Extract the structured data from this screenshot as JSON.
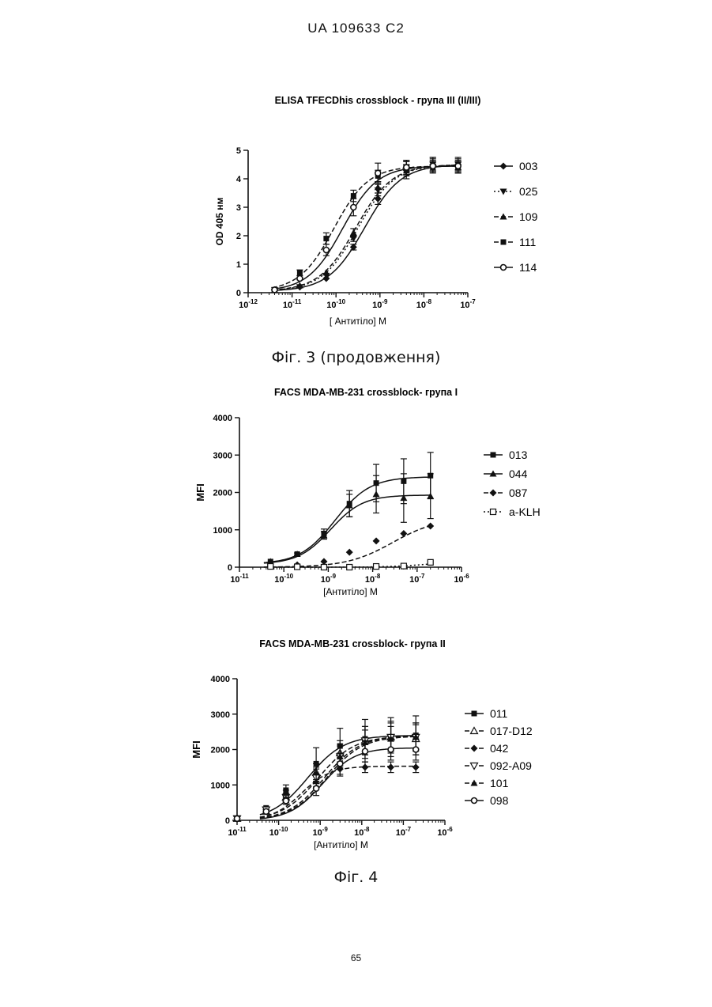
{
  "page": {
    "header": "UA   109633   C2",
    "page_number": "65",
    "figure3_caption": "Фіг. 3 (продовження)",
    "figure4_caption": "Фіг. 4"
  },
  "chart_data": [
    {
      "type": "scatter",
      "title": "ELISA TFECDhis crossblock -  група III (II/III)",
      "xlabel": "[ Антитіло] М",
      "ylabel": "OD 405 нм",
      "xscale": "log",
      "xlim": [
        1e-12,
        1e-07
      ],
      "ylim": [
        0,
        5
      ],
      "xticks": [
        "10-12",
        "10-11",
        "10-10",
        "10-9",
        "10-8",
        "10-7"
      ],
      "yticks": [
        "0",
        "1",
        "2",
        "3",
        "4",
        "5"
      ],
      "legend": "right",
      "x": [
        4e-12,
        1.5e-11,
        6e-11,
        2.5e-10,
        9e-10,
        4e-09,
        1.6e-08,
        6e-08
      ],
      "series": [
        {
          "name": "003",
          "marker": "diamond",
          "dash": "",
          "values": [
            0.1,
            0.2,
            0.5,
            1.6,
            3.3,
            4.3,
            4.5,
            4.5
          ],
          "fit": {
            "bottom": 0.05,
            "top": 4.5,
            "logec50": -9.35,
            "hill": 1.05
          },
          "err": [
            0,
            0,
            0,
            0.1,
            0.2,
            0.3,
            0.25,
            0.25
          ]
        },
        {
          "name": "025",
          "marker": "tri-down",
          "dash": "2,3",
          "values": [
            0.1,
            0.2,
            0.6,
            1.9,
            3.6,
            4.4,
            4.5,
            4.5
          ],
          "fit": {
            "bottom": 0.05,
            "top": 4.5,
            "logec50": -9.5,
            "hill": 1.05
          },
          "err": [
            0,
            0,
            0,
            0.1,
            0.2,
            0.25,
            0.25,
            0.2
          ]
        },
        {
          "name": "109",
          "marker": "tri-up",
          "dash": "6,3",
          "values": [
            0.1,
            0.25,
            0.7,
            2.1,
            3.7,
            4.4,
            4.5,
            4.4
          ],
          "fit": {
            "bottom": 0.05,
            "top": 4.5,
            "logec50": -9.55,
            "hill": 1.05
          },
          "err": [
            0,
            0,
            0,
            0.15,
            0.2,
            0.25,
            0.2,
            0.2
          ]
        },
        {
          "name": "111",
          "marker": "square",
          "dash": "6,3",
          "values": [
            0.1,
            0.7,
            1.9,
            3.4,
            4.1,
            4.3,
            4.4,
            4.4
          ],
          "fit": {
            "bottom": 0.05,
            "top": 4.45,
            "logec50": -10.05,
            "hill": 1.1
          },
          "err": [
            0,
            0.1,
            0.2,
            0.2,
            0.2,
            0.2,
            0.2,
            0.2
          ]
        },
        {
          "name": "114",
          "marker": "circle",
          "dash": "",
          "values": [
            0.1,
            0.5,
            1.5,
            3.0,
            4.2,
            4.4,
            4.45,
            4.45
          ],
          "fit": {
            "bottom": 0.05,
            "top": 4.45,
            "logec50": -9.85,
            "hill": 1.1
          },
          "err": [
            0,
            0.05,
            0.2,
            0.3,
            0.35,
            0.2,
            0.2,
            0.2
          ]
        }
      ]
    },
    {
      "type": "scatter",
      "title": "FACS MDA-MB-231 crossblock- група  I",
      "xlabel": "[Антитіло] М",
      "ylabel": "MFI",
      "xscale": "log",
      "xlim": [
        1e-11,
        1e-06
      ],
      "ylim": [
        0,
        4000
      ],
      "xticks": [
        "10-11",
        "10-10",
        "10-9",
        "10-8",
        "10-7",
        "10-6"
      ],
      "yticks": [
        "0",
        "1000",
        "2000",
        "3000",
        "4000"
      ],
      "legend": "right",
      "x": [
        5e-11,
        2e-10,
        8e-10,
        3e-09,
        1.2e-08,
        5e-08,
        2e-07
      ],
      "series": [
        {
          "name": "013",
          "marker": "square",
          "dash": "",
          "values": [
            150,
            350,
            900,
            1700,
            2250,
            2300,
            2450
          ],
          "fit": {
            "bottom": 80,
            "top": 2420,
            "logec50": -8.85,
            "hill": 1.1
          },
          "err": [
            0,
            30,
            120,
            350,
            500,
            600,
            620
          ]
        },
        {
          "name": "044",
          "marker": "tri-up",
          "dash": "",
          "values": [
            150,
            350,
            850,
            1650,
            1950,
            1850,
            1900
          ],
          "fit": {
            "bottom": 80,
            "top": 1930,
            "logec50": -8.95,
            "hill": 1.2
          },
          "err": [
            0,
            30,
            100,
            300,
            500,
            650,
            600
          ]
        },
        {
          "name": "087",
          "marker": "diamond",
          "dash": "6,3",
          "values": [
            30,
            60,
            150,
            400,
            700,
            900,
            1100
          ],
          "fit": {
            "bottom": 0,
            "top": 1320,
            "logec50": -7.55,
            "hill": 0.85
          },
          "err": [
            0,
            0,
            0,
            0,
            0,
            0,
            0
          ]
        },
        {
          "name": "a-KLH",
          "marker": "open-square",
          "dash": "2,3",
          "values": [
            20,
            10,
            0,
            0,
            20,
            30,
            130
          ],
          "fit": {
            "bottom": 0,
            "top": 150,
            "logec50": -6.8,
            "hill": 1.0
          },
          "err": [
            0,
            0,
            0,
            0,
            0,
            0,
            0
          ]
        }
      ]
    },
    {
      "type": "scatter",
      "title": "FACS MDA-MB-231 crossblock- група  II",
      "xlabel": "[Антитіло] М",
      "ylabel": "MFI",
      "xscale": "log",
      "xlim": [
        1e-11,
        1e-06
      ],
      "ylim": [
        0,
        4000
      ],
      "xticks": [
        "10-11",
        "10-10",
        "10-9",
        "10-8",
        "10-7",
        "10-6"
      ],
      "yticks": [
        "0",
        "1000",
        "2000",
        "3000",
        "4000"
      ],
      "legend": "right",
      "x": [
        1e-11,
        5e-11,
        1.5e-10,
        8e-10,
        3e-09,
        1.2e-08,
        5e-08,
        2e-07
      ],
      "series": [
        {
          "name": "011",
          "marker": "square",
          "dash": "",
          "values": [
            50,
            350,
            850,
            1600,
            2100,
            2300,
            2350,
            2400
          ],
          "fit": {
            "bottom": 0,
            "top": 2400,
            "logec50": -9.3,
            "hill": 1.0
          },
          "err": [
            0,
            0,
            150,
            450,
            500,
            550,
            550,
            550
          ]
        },
        {
          "name": "017-D12",
          "marker": "open-tri-up",
          "dash": "6,3",
          "values": [
            50,
            250,
            650,
            1350,
            1900,
            2250,
            2350,
            2300
          ],
          "fit": {
            "bottom": 0,
            "top": 2380,
            "logec50": -9.05,
            "hill": 1.0
          },
          "err": [
            0,
            0,
            100,
            250,
            350,
            400,
            450,
            450
          ]
        },
        {
          "name": "042",
          "marker": "diamond",
          "dash": "6,3",
          "values": [
            50,
            300,
            750,
            1300,
            1450,
            1500,
            1500,
            1500
          ],
          "fit": {
            "bottom": 0,
            "top": 1530,
            "logec50": -9.45,
            "hill": 1.25
          },
          "err": [
            0,
            0,
            100,
            200,
            200,
            150,
            150,
            150
          ]
        },
        {
          "name": "092-A09",
          "marker": "open-tri-down",
          "dash": "6,3",
          "values": [
            50,
            300,
            650,
            1200,
            1800,
            2250,
            2350,
            2350
          ],
          "fit": {
            "bottom": 0,
            "top": 2400,
            "logec50": -8.9,
            "hill": 1.0
          },
          "err": [
            0,
            0,
            100,
            250,
            350,
            400,
            400,
            400
          ]
        },
        {
          "name": "101",
          "marker": "tri-up",
          "dash": "6,3",
          "values": [
            50,
            250,
            600,
            1100,
            1800,
            2200,
            2300,
            2350
          ],
          "fit": {
            "bottom": 0,
            "top": 2380,
            "logec50": -8.85,
            "hill": 1.0
          },
          "err": [
            0,
            0,
            100,
            200,
            300,
            350,
            350,
            350
          ]
        },
        {
          "name": "098",
          "marker": "circle",
          "dash": "",
          "values": [
            50,
            250,
            550,
            900,
            1600,
            1950,
            2000,
            2000
          ],
          "fit": {
            "bottom": 0,
            "top": 2050,
            "logec50": -8.95,
            "hill": 1.1
          },
          "err": [
            0,
            0,
            100,
            200,
            300,
            300,
            300,
            300
          ]
        }
      ]
    }
  ]
}
